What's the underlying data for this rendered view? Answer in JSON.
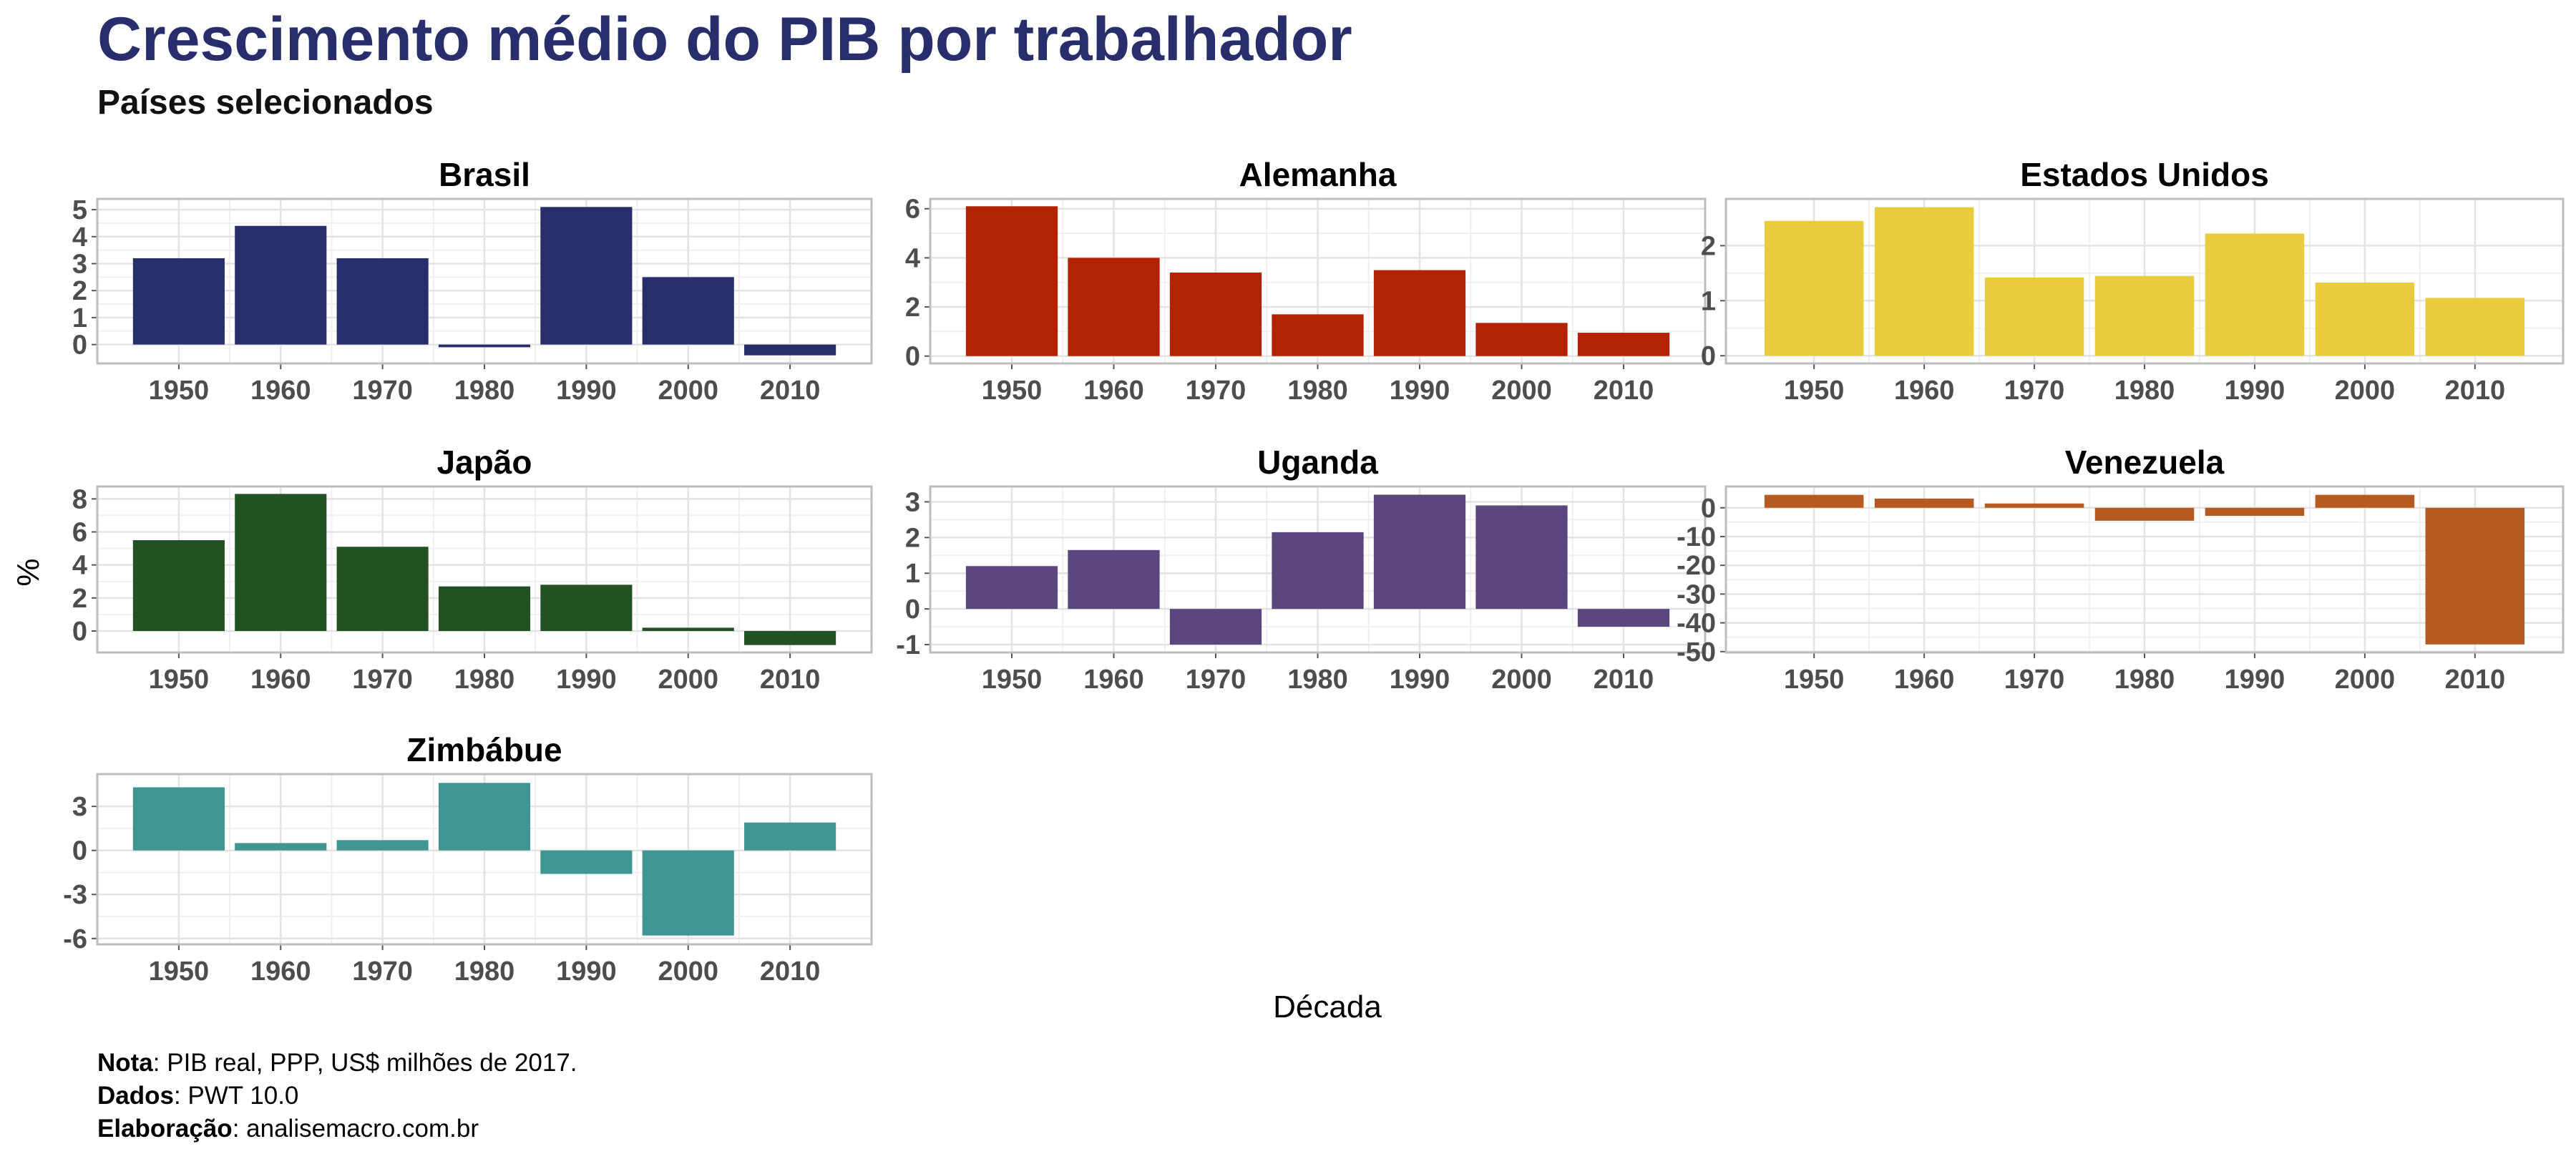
{
  "header": {
    "title": "Crescimento médio do PIB por trabalhador",
    "subtitle": "Países selecionados"
  },
  "caption": {
    "nota_label": "Nota",
    "nota_text": ": PIB real, PPP, US$ milhões de 2017.",
    "dados_label": "Dados",
    "dados_text": ": PWT 10.0",
    "elaboracao_label": "Elaboração",
    "elaboracao_text": ": analisemacro.com.br"
  },
  "chart_data": {
    "type": "bar",
    "xlabel": "Década",
    "ylabel": "%",
    "grid": true,
    "categories": [
      "1950",
      "1960",
      "1970",
      "1980",
      "1990",
      "2000",
      "2010"
    ],
    "panels": [
      {
        "name": "Brasil",
        "color": "#282e6b",
        "values": [
          3.2,
          4.4,
          3.2,
          -0.1,
          5.1,
          2.5,
          -0.4
        ],
        "ylim": [
          -0.7,
          5.4
        ],
        "ticks": [
          0,
          1,
          2,
          3,
          4,
          5
        ]
      },
      {
        "name": "Alemanha",
        "color": "#b22203",
        "values": [
          6.1,
          4.0,
          3.4,
          1.7,
          3.5,
          1.35,
          0.95
        ],
        "ylim": [
          -0.3,
          6.4
        ],
        "ticks": [
          0,
          2,
          4,
          6
        ]
      },
      {
        "name": "Estados Unidos",
        "color": "#e8cc3e",
        "values": [
          2.45,
          2.7,
          1.42,
          1.45,
          2.22,
          1.33,
          1.05
        ],
        "ylim": [
          -0.14,
          2.85
        ],
        "ticks": [
          0,
          1,
          2
        ]
      },
      {
        "name": "Japão",
        "color": "#225223",
        "values": [
          5.5,
          8.3,
          5.1,
          2.7,
          2.8,
          0.2,
          -0.85
        ],
        "ylim": [
          -1.3,
          8.75
        ],
        "ticks": [
          0,
          2,
          4,
          6,
          8
        ]
      },
      {
        "name": "Uganda",
        "color": "#5b467e",
        "values": [
          1.2,
          1.65,
          -1.0,
          2.15,
          3.2,
          2.9,
          -0.5
        ],
        "ylim": [
          -1.22,
          3.43
        ],
        "ticks": [
          -1,
          0,
          1,
          2,
          3
        ]
      },
      {
        "name": "Venezuela",
        "color": "#b55a21",
        "values": [
          4.5,
          3.2,
          1.5,
          -4.5,
          -2.8,
          4.5,
          -47.5
        ],
        "ylim": [
          -50.3,
          7.4
        ],
        "ticks": [
          -50,
          -40,
          -30,
          -20,
          -10,
          0
        ]
      },
      {
        "name": "Zimbábue",
        "color": "#3e9592",
        "values": [
          4.3,
          0.5,
          0.7,
          4.6,
          -1.6,
          -5.8,
          1.9
        ],
        "ylim": [
          -6.4,
          5.2
        ],
        "ticks": [
          -6,
          -3,
          0,
          3
        ]
      }
    ]
  }
}
